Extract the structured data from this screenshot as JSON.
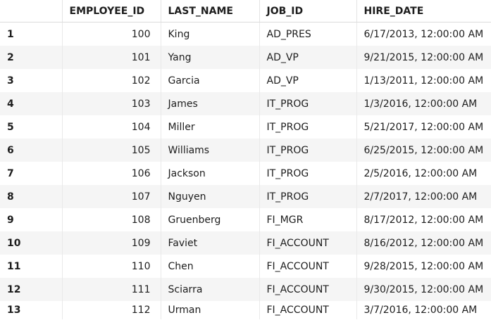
{
  "columns": [
    "",
    "EMPLOYEE_ID",
    "LAST_NAME",
    "JOB_ID",
    "HIRE_DATE"
  ],
  "rows": [
    {
      "rownum": "1",
      "employee_id": "100",
      "last_name": "King",
      "job_id": "AD_PRES",
      "hire_date": "6/17/2013, 12:00:00 AM"
    },
    {
      "rownum": "2",
      "employee_id": "101",
      "last_name": "Yang",
      "job_id": "AD_VP",
      "hire_date": "9/21/2015, 12:00:00 AM"
    },
    {
      "rownum": "3",
      "employee_id": "102",
      "last_name": "Garcia",
      "job_id": "AD_VP",
      "hire_date": "1/13/2011, 12:00:00 AM"
    },
    {
      "rownum": "4",
      "employee_id": "103",
      "last_name": "James",
      "job_id": "IT_PROG",
      "hire_date": "1/3/2016, 12:00:00 AM"
    },
    {
      "rownum": "5",
      "employee_id": "104",
      "last_name": "Miller",
      "job_id": "IT_PROG",
      "hire_date": "5/21/2017, 12:00:00 AM"
    },
    {
      "rownum": "6",
      "employee_id": "105",
      "last_name": "Williams",
      "job_id": "IT_PROG",
      "hire_date": "6/25/2015, 12:00:00 AM"
    },
    {
      "rownum": "7",
      "employee_id": "106",
      "last_name": "Jackson",
      "job_id": "IT_PROG",
      "hire_date": "2/5/2016, 12:00:00 AM"
    },
    {
      "rownum": "8",
      "employee_id": "107",
      "last_name": "Nguyen",
      "job_id": "IT_PROG",
      "hire_date": "2/7/2017, 12:00:00 AM"
    },
    {
      "rownum": "9",
      "employee_id": "108",
      "last_name": "Gruenberg",
      "job_id": "FI_MGR",
      "hire_date": "8/17/2012, 12:00:00 AM"
    },
    {
      "rownum": "10",
      "employee_id": "109",
      "last_name": "Faviet",
      "job_id": "FI_ACCOUNT",
      "hire_date": "8/16/2012, 12:00:00 AM"
    },
    {
      "rownum": "11",
      "employee_id": "110",
      "last_name": "Chen",
      "job_id": "FI_ACCOUNT",
      "hire_date": "9/28/2015, 12:00:00 AM"
    },
    {
      "rownum": "12",
      "employee_id": "111",
      "last_name": "Sciarra",
      "job_id": "FI_ACCOUNT",
      "hire_date": "9/30/2015, 12:00:00 AM"
    },
    {
      "rownum": "13",
      "employee_id": "112",
      "last_name": "Urman",
      "job_id": "FI_ACCOUNT",
      "hire_date": "3/7/2016, 12:00:00 AM"
    }
  ]
}
